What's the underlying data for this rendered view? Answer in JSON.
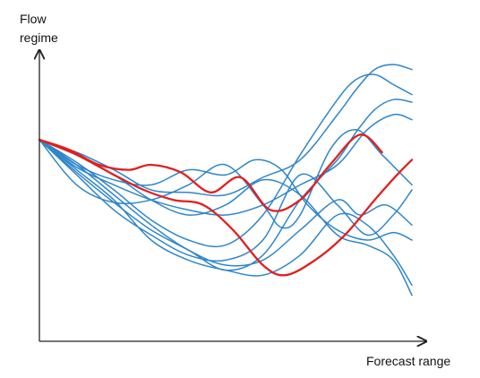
{
  "chart_data": {
    "type": "line",
    "title": "",
    "ylabel": "Flow regime",
    "ylabel_lines": [
      "Flow",
      "regime"
    ],
    "xlabel": "Forecast range",
    "xlim": [
      0,
      100
    ],
    "ylim": [
      0,
      100
    ],
    "grid": false,
    "axis_ticks": false,
    "colors": {
      "axis": "#222222",
      "blue": "#2e86c8",
      "red": "#e02020"
    },
    "series": [
      {
        "color": "#2e86c8",
        "x": [
          0,
          10,
          20,
          30,
          40,
          50,
          60,
          70,
          80,
          85,
          90,
          95,
          100
        ],
        "y": [
          70,
          65,
          58,
          50,
          49,
          48,
          55,
          62,
          80,
          90,
          98,
          100,
          98
        ]
      },
      {
        "color": "#2e86c8",
        "x": [
          0,
          10,
          20,
          30,
          40,
          50,
          60,
          70,
          80,
          85,
          90,
          95,
          100
        ],
        "y": [
          70,
          61,
          50,
          38,
          30,
          28,
          40,
          64,
          86,
          94,
          96,
          92,
          88
        ]
      },
      {
        "color": "#2e86c8",
        "x": [
          0,
          10,
          20,
          30,
          40,
          50,
          60,
          70,
          80,
          85,
          90,
          95,
          100
        ],
        "y": [
          70,
          57,
          45,
          34,
          26,
          18,
          24,
          46,
          62,
          73,
          82,
          86,
          85
        ]
      },
      {
        "color": "#2e86c8",
        "x": [
          0,
          10,
          20,
          30,
          40,
          50,
          60,
          65,
          70,
          78,
          85,
          92,
          100
        ],
        "y": [
          70,
          52,
          45,
          46,
          52,
          60,
          44,
          35,
          40,
          66,
          74,
          64,
          52
        ]
      },
      {
        "color": "#2e86c8",
        "x": [
          0,
          10,
          20,
          30,
          40,
          50,
          58,
          65,
          72,
          80,
          88,
          95,
          100
        ],
        "y": [
          70,
          60,
          54,
          52,
          58,
          56,
          62,
          58,
          44,
          34,
          30,
          33,
          30
        ]
      },
      {
        "color": "#2e86c8",
        "x": [
          0,
          10,
          20,
          30,
          40,
          50,
          60,
          70,
          80,
          88,
          95,
          100
        ],
        "y": [
          70,
          58,
          46,
          30,
          22,
          18,
          16,
          24,
          40,
          36,
          24,
          12
        ]
      },
      {
        "color": "#2e86c8",
        "x": [
          0,
          10,
          20,
          30,
          40,
          50,
          60,
          70,
          80,
          88,
          95,
          100
        ],
        "y": [
          70,
          64,
          56,
          46,
          40,
          44,
          54,
          48,
          32,
          28,
          22,
          8
        ]
      },
      {
        "color": "#2e86c8",
        "x": [
          0,
          10,
          20,
          30,
          40,
          50,
          60,
          70,
          80,
          86,
          93,
          100
        ],
        "y": [
          70,
          60,
          48,
          36,
          26,
          20,
          22,
          34,
          46,
          40,
          44,
          36
        ]
      },
      {
        "color": "#2e86c8",
        "x": [
          0,
          10,
          20,
          30,
          40,
          50,
          60,
          70,
          80,
          88,
          95,
          100
        ],
        "y": [
          70,
          56,
          42,
          32,
          24,
          22,
          30,
          56,
          44,
          32,
          40,
          50
        ]
      },
      {
        "color": "#2e86c8",
        "x": [
          0,
          10,
          20,
          30,
          40,
          50,
          60,
          70,
          80,
          88,
          95,
          100
        ],
        "y": [
          70,
          59,
          52,
          46,
          42,
          40,
          44,
          52,
          60,
          74,
          80,
          78
        ]
      },
      {
        "color": "#e02020",
        "x": [
          0,
          8,
          16,
          24,
          30,
          38,
          46,
          54,
          62,
          70,
          78,
          86,
          92
        ],
        "y": [
          70,
          66,
          60,
          58,
          60,
          57,
          49,
          55,
          42,
          46,
          60,
          72,
          65
        ]
      },
      {
        "color": "#e02020",
        "x": [
          0,
          10,
          20,
          28,
          36,
          44,
          52,
          60,
          66,
          74,
          82,
          90,
          96,
          100
        ],
        "y": [
          70,
          64,
          56,
          50,
          46,
          44,
          34,
          20,
          16,
          22,
          32,
          46,
          56,
          62
        ]
      }
    ]
  }
}
